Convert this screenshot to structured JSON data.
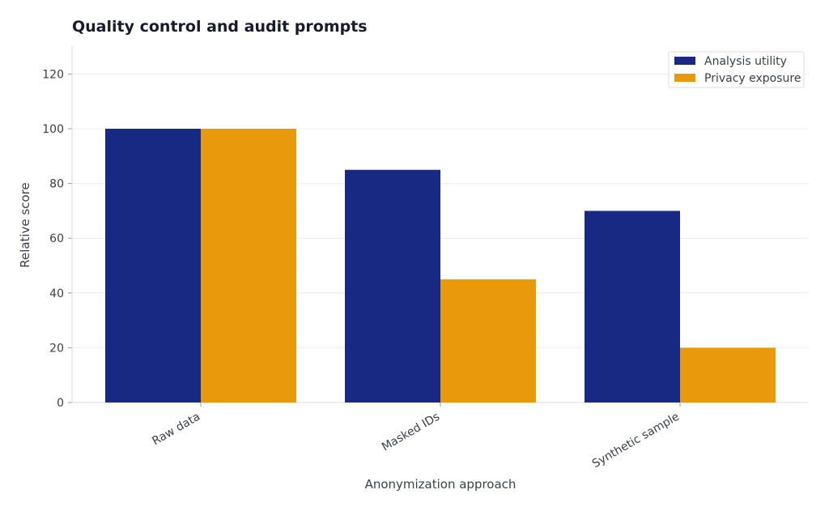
{
  "chart_data": {
    "type": "bar",
    "title": "Quality control and audit prompts",
    "xlabel": "Anonymization approach",
    "ylabel": "Relative score",
    "categories": [
      "Raw data",
      "Masked IDs",
      "Synthetic sample"
    ],
    "series": [
      {
        "name": "Analysis utility",
        "values": [
          100,
          85,
          70
        ],
        "color": "#172983"
      },
      {
        "name": "Privacy exposure",
        "values": [
          100,
          45,
          20
        ],
        "color": "#e89a0c"
      }
    ],
    "ylim": [
      0,
      130
    ],
    "yticks": [
      0,
      20,
      40,
      60,
      80,
      100,
      120
    ],
    "grid": true,
    "legend_position": "top-right"
  }
}
